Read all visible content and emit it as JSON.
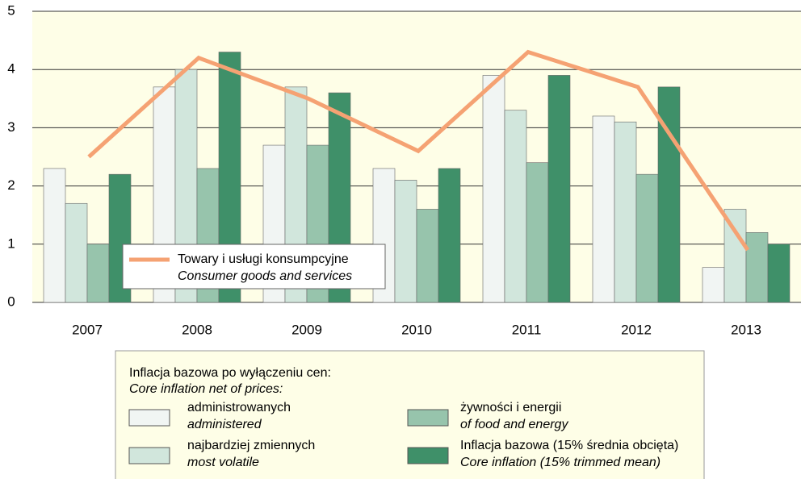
{
  "chart_data": {
    "type": "bar",
    "categories": [
      "2007",
      "2008",
      "2009",
      "2010",
      "2011",
      "2012",
      "2013"
    ],
    "series": [
      {
        "name": "administrowanych",
        "name_en": "administered",
        "color": "#f1f5f3",
        "values": [
          2.3,
          3.7,
          2.7,
          2.3,
          3.9,
          3.2,
          0.6
        ]
      },
      {
        "name": "najbardziej zmiennych",
        "name_en": "most volatile",
        "color": "#d1e6dc",
        "values": [
          1.7,
          4.0,
          3.7,
          2.1,
          3.3,
          3.1,
          1.6
        ]
      },
      {
        "name": "żywności i energii",
        "name_en": "of food and energy",
        "color": "#97c4ac",
        "values": [
          1.0,
          2.3,
          2.7,
          1.6,
          2.4,
          2.2,
          1.2
        ]
      },
      {
        "name": "Inflacja bazowa (15% średnia obcięta)",
        "name_en": "Core inflation (15% trimmed mean)",
        "color": "#3f9069",
        "values": [
          2.2,
          4.3,
          3.6,
          2.3,
          3.9,
          3.7,
          1.0
        ]
      },
      {
        "name": "Towary i usługi konsumpcyjne",
        "name_en": "Consumer goods and services",
        "type": "line",
        "color": "#f5a273",
        "values": [
          2.5,
          4.2,
          3.5,
          2.6,
          4.3,
          3.7,
          0.9
        ]
      }
    ],
    "legend_title": [
      "Inflacja bazowa po wyłączeniu cen:",
      "Core inflation net of prices:"
    ],
    "ylim": [
      0,
      5
    ],
    "yticks": [
      0,
      1,
      2,
      3,
      4,
      5
    ],
    "grid": true
  }
}
